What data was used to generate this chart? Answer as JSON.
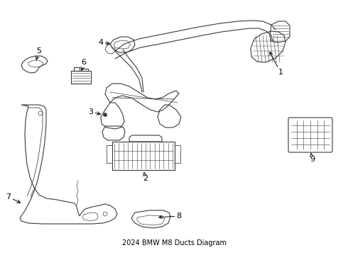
{
  "title": "2024 BMW M8 Ducts Diagram",
  "background_color": "#ffffff",
  "line_color": "#3a3a3a",
  "text_color": "#000000",
  "line_width": 0.8,
  "figsize": [
    4.9,
    3.6
  ],
  "dpi": 100
}
